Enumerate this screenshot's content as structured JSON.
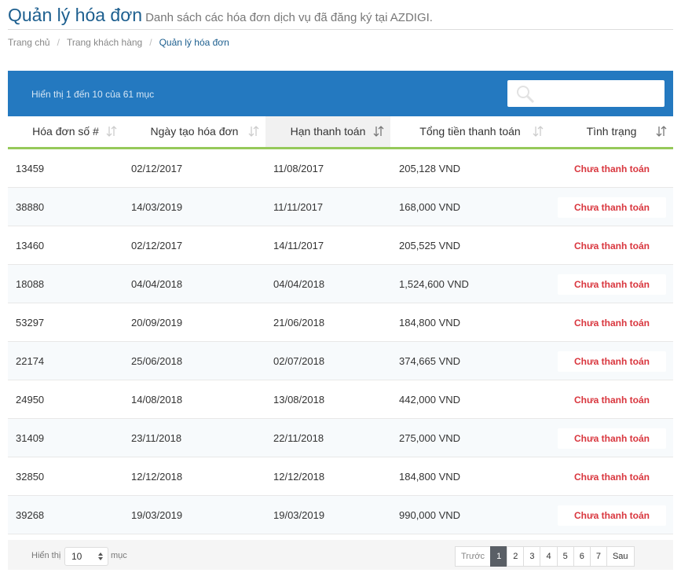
{
  "header": {
    "title": "Quản lý hóa đơn",
    "subtitle": "Danh sách các hóa đơn dịch vụ đã đăng ký tại AZDIGI."
  },
  "breadcrumb": [
    "Trang chủ",
    "Trang khách hàng",
    "Quản lý hóa đơn"
  ],
  "table": {
    "info": "Hiển thị 1 đến 10 của 61 mục",
    "columns": [
      "Hóa đơn số #",
      "Ngày tạo hóa đơn",
      "Hạn thanh toán",
      "Tổng tiền thanh toán",
      "Tình trạng"
    ],
    "rows": [
      [
        "13459",
        "02/12/2017",
        "11/08/2017",
        "205,128 VND",
        "Chưa thanh toán"
      ],
      [
        "38880",
        "14/03/2019",
        "11/11/2017",
        "168,000 VND",
        "Chưa thanh toán"
      ],
      [
        "13460",
        "02/12/2017",
        "14/11/2017",
        "205,525 VND",
        "Chưa thanh toán"
      ],
      [
        "18088",
        "04/04/2018",
        "04/04/2018",
        "1,524,600 VND",
        "Chưa thanh toán"
      ],
      [
        "53297",
        "20/09/2019",
        "21/06/2018",
        "184,800 VND",
        "Chưa thanh toán"
      ],
      [
        "22174",
        "25/06/2018",
        "02/07/2018",
        "374,665 VND",
        "Chưa thanh toán"
      ],
      [
        "24950",
        "14/08/2018",
        "13/08/2018",
        "442,000 VND",
        "Chưa thanh toán"
      ],
      [
        "31409",
        "23/11/2018",
        "22/11/2018",
        "275,000 VND",
        "Chưa thanh toán"
      ],
      [
        "32850",
        "12/12/2018",
        "12/12/2018",
        "184,800 VND",
        "Chưa thanh toán"
      ],
      [
        "39268",
        "19/03/2019",
        "19/03/2019",
        "990,000 VND",
        "Chưa thanh toán"
      ]
    ]
  },
  "footer": {
    "show_label": "Hiển thị",
    "page_size": "10",
    "unit": "mục",
    "pagination": [
      "Trước",
      "1",
      "2",
      "3",
      "4",
      "5",
      "6",
      "7",
      "Sau"
    ]
  }
}
